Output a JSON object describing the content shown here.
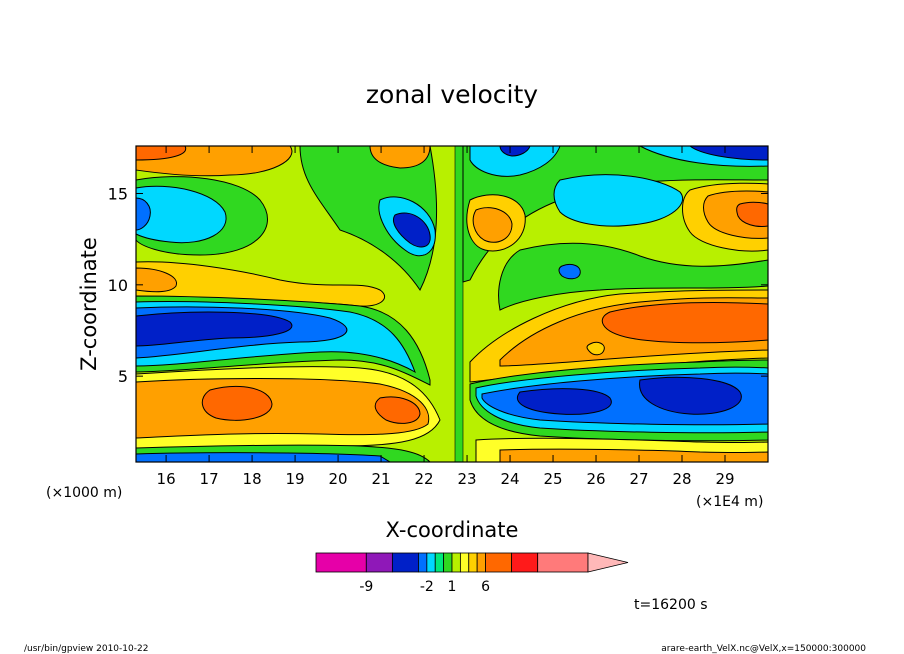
{
  "chart_data": {
    "type": "heatmap",
    "title": "zonal velocity",
    "xlabel": "X-coordinate",
    "ylabel": "Z-coordinate",
    "x_unit_left": "(×1000 m)",
    "x_unit_right": "(×1E4 m)",
    "xlim": [
      15.3,
      30.0
    ],
    "ylim": [
      0.3,
      17.6
    ],
    "x_ticks": [
      "16",
      "17",
      "18",
      "19",
      "20",
      "21",
      "22",
      "23",
      "24",
      "25",
      "26",
      "27",
      "28",
      "29"
    ],
    "y_ticks": [
      "5",
      "10",
      "15"
    ],
    "grid": false,
    "colorbar": {
      "levels": [
        -12,
        -9,
        -6,
        -3,
        -2,
        -1,
        0,
        1,
        2,
        3,
        4,
        6,
        9,
        12
      ],
      "colors": [
        "#e600a8",
        "#8f18b8",
        "#0020c8",
        "#0070ff",
        "#00d8ff",
        "#00e87a",
        "#30d820",
        "#b8f000",
        "#ffff28",
        "#ffd000",
        "#ffa000",
        "#ff6800",
        "#ff1a1a",
        "#ff7a7a",
        "#ffb8b8"
      ],
      "labels": [
        "-9",
        "-2",
        "1",
        "6"
      ],
      "label_levels": [
        -9,
        -2,
        1,
        6
      ]
    },
    "annotation": "t=16200 s"
  },
  "footer": {
    "left": "/usr/bin/gpview  2010-10-22",
    "right": "arare-earth_VelX.nc@VelX,x=150000:300000"
  }
}
